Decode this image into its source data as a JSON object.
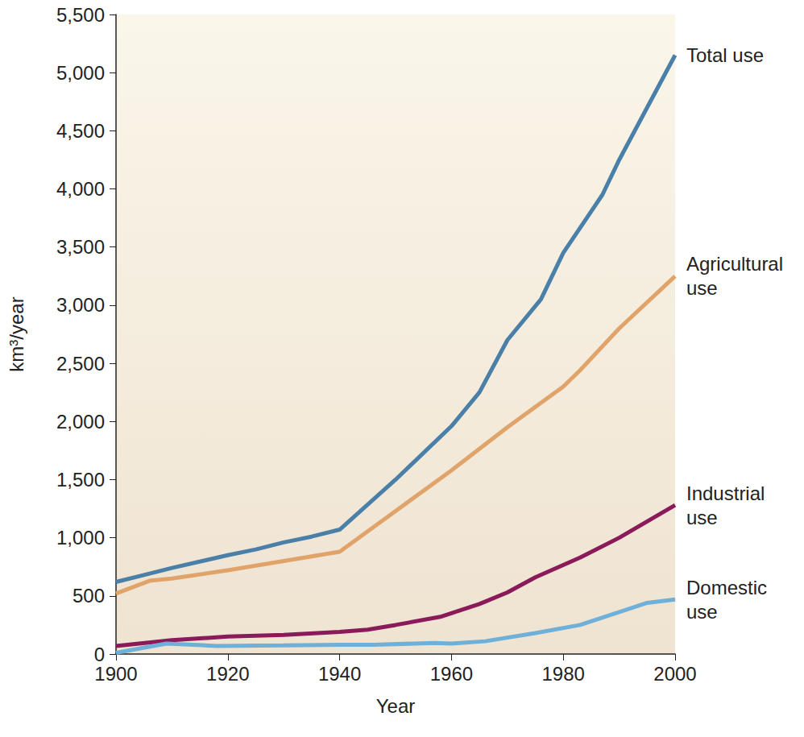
{
  "chart_data": {
    "type": "line",
    "x_label": "Year",
    "y_label": "km³/year",
    "xlim": [
      1900,
      2000
    ],
    "xticks": [
      1900,
      1920,
      1940,
      1960,
      1980,
      2000
    ],
    "ylim": [
      0,
      5500
    ],
    "yticks": [
      0,
      500,
      {
        "value": 1000,
        "label": "1,000"
      },
      {
        "value": 1500,
        "label": "1,500"
      },
      {
        "value": 2000,
        "label": "2,000"
      },
      {
        "value": 2500,
        "label": "2,500"
      },
      {
        "value": 3000,
        "label": "3,000"
      },
      {
        "value": 3500,
        "label": "3,500"
      },
      {
        "value": 4000,
        "label": "4,000"
      },
      {
        "value": 4500,
        "label": "4,500"
      },
      {
        "value": 5000,
        "label": "5,000"
      },
      {
        "value": 5500,
        "label": "5,500"
      }
    ],
    "grid": false,
    "series": [
      {
        "name": "Total use",
        "color": "#4a7fa8",
        "x": [
          1900,
          1905,
          1910,
          1920,
          1925,
          1930,
          1935,
          1940,
          1950,
          1960,
          1965,
          1970,
          1976,
          1980,
          1987,
          1990,
          2000
        ],
        "values": [
          620,
          680,
          740,
          850,
          900,
          960,
          1010,
          1070,
          1500,
          1960,
          2250,
          2700,
          3050,
          3450,
          3950,
          4250,
          5150
        ]
      },
      {
        "name": "Agricultural use",
        "color": "#e0a36a",
        "x": [
          1900,
          1906,
          1910,
          1920,
          1930,
          1940,
          1950,
          1960,
          1970,
          1980,
          1983,
          1990,
          2000
        ],
        "values": [
          520,
          630,
          650,
          720,
          800,
          880,
          1230,
          1580,
          1950,
          2300,
          2440,
          2800,
          3250
        ]
      },
      {
        "name": "Industrial use",
        "color": "#8b1a5a",
        "x": [
          1900,
          1910,
          1920,
          1930,
          1940,
          1945,
          1950,
          1958,
          1965,
          1970,
          1975,
          1983,
          1990,
          2000
        ],
        "values": [
          70,
          120,
          150,
          165,
          190,
          210,
          250,
          320,
          430,
          530,
          660,
          830,
          1000,
          1280
        ]
      },
      {
        "name": "Domestic use",
        "color": "#6fb0d8",
        "x": [
          1900,
          1909,
          1918,
          1930,
          1940,
          1946,
          1957,
          1960,
          1966,
          1975,
          1983,
          1995,
          2000
        ],
        "values": [
          10,
          90,
          70,
          75,
          80,
          80,
          95,
          90,
          110,
          180,
          250,
          440,
          470
        ]
      }
    ]
  }
}
